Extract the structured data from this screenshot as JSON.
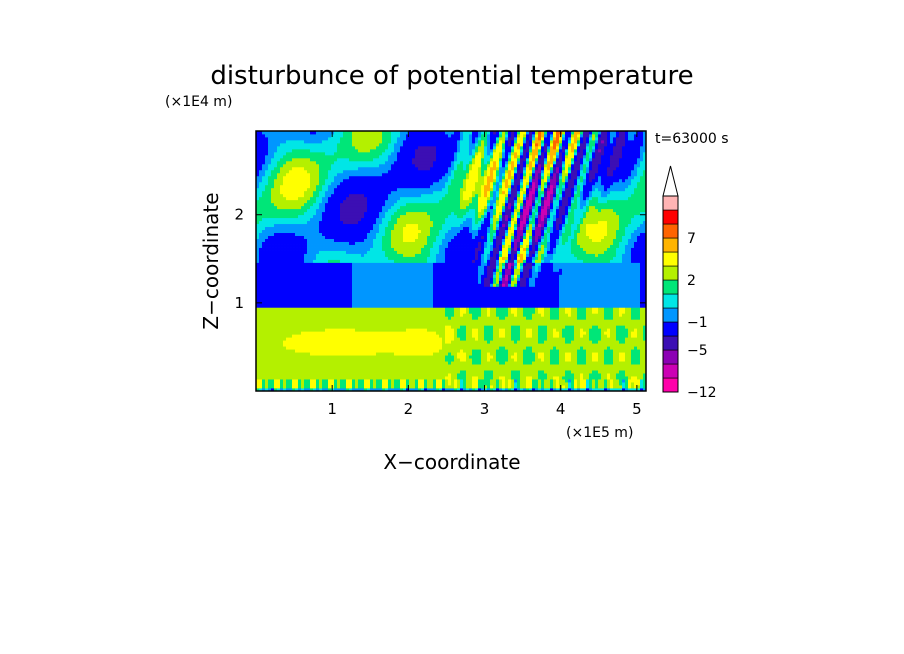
{
  "chart_data": {
    "type": "heatmap",
    "title": "disturbunce of potential temperature",
    "time_label": "t=63000 s",
    "xlabel": "X−coordinate",
    "ylabel": "Z−coordinate",
    "x_unit": "(×1E5 m)",
    "y_unit": "(×1E4 m)",
    "xlim": [
      0,
      5.12
    ],
    "ylim": [
      0,
      2.95
    ],
    "x_ticks": [
      1,
      2,
      3,
      4,
      5
    ],
    "x_tick_labels": [
      "1",
      "2",
      "3",
      "4",
      "5"
    ],
    "y_ticks": [
      1,
      2
    ],
    "y_tick_labels": [
      "1",
      "2"
    ],
    "colorbar": {
      "extend": "max",
      "levels": [
        -12,
        -9,
        -7,
        -5,
        -3,
        -1,
        0,
        1,
        2,
        3,
        5,
        7,
        9,
        12
      ],
      "tick_values": [
        -12,
        -5,
        -1,
        2,
        7
      ],
      "tick_labels": [
        "−12",
        "−5",
        "−1",
        "2",
        "7"
      ],
      "colors": [
        "#ff00aa",
        "#cc00b4",
        "#8c00b4",
        "#3c0fb4",
        "#0000ff",
        "#0096ff",
        "#00e6e6",
        "#00e678",
        "#b4f000",
        "#ffff00",
        "#ffb400",
        "#ff6400",
        "#ff0000",
        "#ffb4b4"
      ],
      "extend_color": "#ffffff"
    },
    "field_description_levels": {
      "background": 0,
      "lower_band_range": [
        0.05,
        0.95
      ],
      "lower_band_values": [
        2,
        3
      ]
    }
  }
}
